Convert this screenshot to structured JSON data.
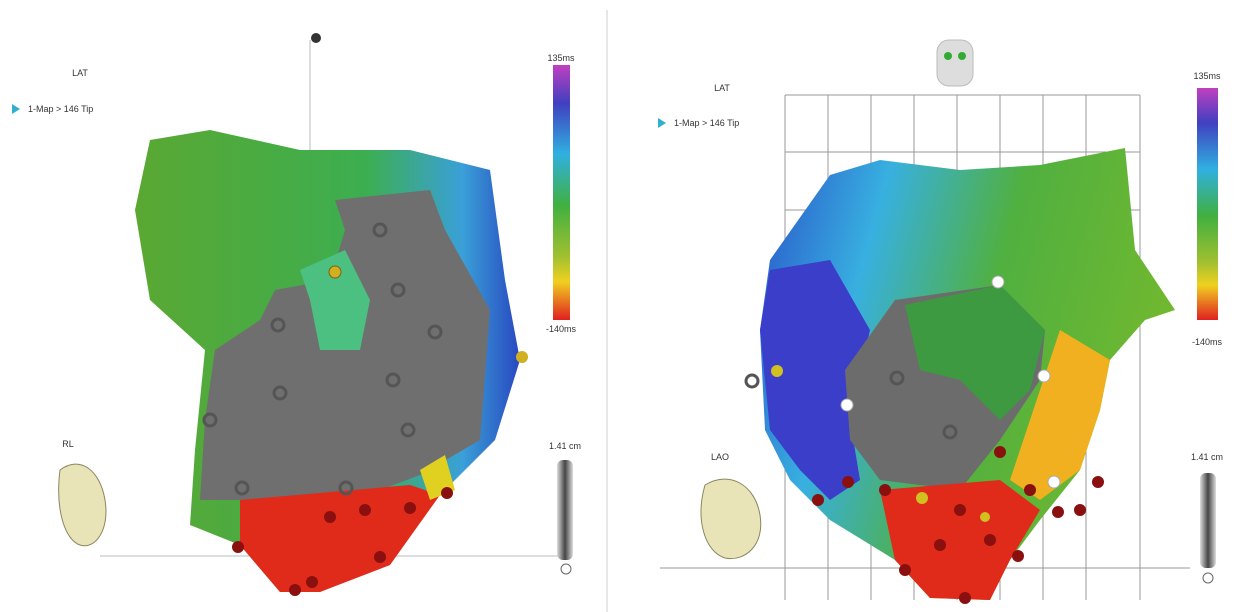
{
  "panels": [
    {
      "title": "LAT",
      "map_label": "1-Map > 146 Tip",
      "scale_max": "135ms",
      "scale_min": "-140ms",
      "view": "RL",
      "distance": "1.41 cm"
    },
    {
      "title": "LAT",
      "map_label": "1-Map > 146 Tip",
      "scale_max": "135ms",
      "scale_min": "-140ms",
      "view": "LAO",
      "distance": "1.41 cm"
    }
  ]
}
